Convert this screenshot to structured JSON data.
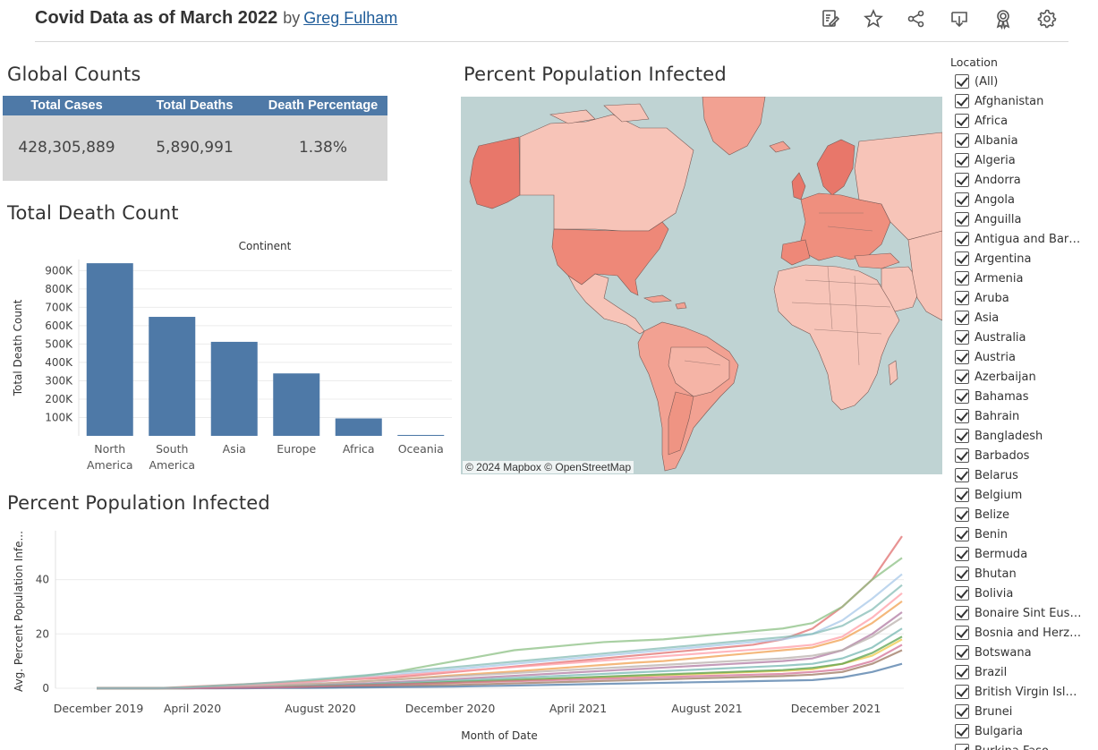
{
  "header": {
    "title": "Covid Data as of March 2022",
    "by": "by",
    "author": "Greg Fulham",
    "icons": [
      "edit-icon",
      "star-icon",
      "share-icon",
      "download-icon",
      "badge-icon",
      "gear-icon"
    ]
  },
  "global_counts": {
    "title": "Global Counts",
    "headers": [
      "Total Cases",
      "Total Deaths",
      "Death Percentage"
    ],
    "values": [
      "428,305,889",
      "5,890,991",
      "1.38%"
    ],
    "header_color": "#4e79a7",
    "body_color": "#d6d6d6"
  },
  "death_count": {
    "title": "Total Death Count"
  },
  "map": {
    "title": "Percent Population Infected",
    "attribution": "© 2024 Mapbox  © OpenStreetMap"
  },
  "ppi_line": {
    "title": "Percent Population Infected"
  },
  "filter": {
    "title": "Location",
    "items": [
      "(All)",
      "Afghanistan",
      "Africa",
      "Albania",
      "Algeria",
      "Andorra",
      "Angola",
      "Anguilla",
      "Antigua and Barb...",
      "Argentina",
      "Armenia",
      "Aruba",
      "Asia",
      "Australia",
      "Austria",
      "Azerbaijan",
      "Bahamas",
      "Bahrain",
      "Bangladesh",
      "Barbados",
      "Belarus",
      "Belgium",
      "Belize",
      "Benin",
      "Bermuda",
      "Bhutan",
      "Bolivia",
      "Bonaire Sint Eust...",
      "Bosnia and Herze...",
      "Botswana",
      "Brazil",
      "British Virgin Isla...",
      "Brunei",
      "Bulgaria",
      "Burkina Faso"
    ]
  },
  "chart_data": [
    {
      "type": "bar",
      "title": "Continent",
      "xlabel": "",
      "ylabel": "Total Death Count",
      "categories": [
        "North\nAmerica",
        "South\nAmerica",
        "Asia",
        "Europe",
        "Africa",
        "Oceania"
      ],
      "values": [
        940000,
        648000,
        512000,
        340000,
        95000,
        5000
      ],
      "ylim": [
        0,
        960000
      ],
      "yticks": [
        100000,
        200000,
        300000,
        400000,
        500000,
        600000,
        700000,
        800000,
        900000
      ],
      "ytick_labels": [
        "100K",
        "200K",
        "300K",
        "400K",
        "500K",
        "600K",
        "700K",
        "800K",
        "900K"
      ],
      "color": "#4e79a7",
      "grid": true
    },
    {
      "type": "line",
      "xlabel": "Month of Date",
      "ylabel": "Avg. Percent Population Infe...",
      "x_ticks": [
        "December 2019",
        "April 2020",
        "August 2020",
        "December 2020",
        "April 2021",
        "August 2021",
        "December 2021"
      ],
      "x_range": [
        "2019-12",
        "2022-03"
      ],
      "ylim": [
        0,
        58
      ],
      "yticks": [
        0,
        20,
        40
      ],
      "series_note": "one line per location (~200)",
      "series": [
        {
          "color": "#e06f6f",
          "values": [
            0,
            0,
            0,
            0.5,
            1,
            1.5,
            2,
            2.5,
            3,
            3.5,
            4,
            5,
            6,
            7,
            8,
            9,
            10,
            11,
            12,
            13,
            14,
            15,
            16,
            18,
            22,
            30,
            40,
            56
          ]
        },
        {
          "color": "#8cc084",
          "values": [
            0,
            0,
            0,
            0.3,
            0.8,
            1.2,
            1.8,
            2.5,
            3.5,
            4.5,
            6,
            8,
            10,
            12,
            14,
            15,
            16,
            17,
            17.5,
            18,
            19,
            20,
            21,
            22,
            24,
            30,
            40,
            48
          ]
        },
        {
          "color": "#a8c8e8",
          "values": [
            0,
            0,
            0,
            0.2,
            0.5,
            1,
            1.5,
            2,
            3,
            4,
            5,
            6,
            7,
            8,
            9,
            10,
            11,
            12,
            13,
            14,
            15,
            16,
            17,
            18,
            20,
            25,
            33,
            42
          ]
        },
        {
          "color": "#f0a050",
          "values": [
            0,
            0,
            0,
            0.1,
            0.3,
            0.6,
            1,
            1.4,
            2,
            2.6,
            3.2,
            4,
            4.8,
            5.5,
            6.2,
            7,
            7.8,
            8.6,
            9.4,
            10,
            11,
            12,
            13,
            14,
            15,
            18,
            24,
            32
          ]
        },
        {
          "color": "#b07aa1",
          "values": [
            0,
            0,
            0,
            0.1,
            0.2,
            0.4,
            0.7,
            1,
            1.4,
            1.8,
            2.3,
            2.8,
            3.4,
            4,
            4.6,
            5.2,
            5.8,
            6.4,
            7,
            7.6,
            8.2,
            8.8,
            9.4,
            10,
            11,
            14,
            20,
            28
          ]
        },
        {
          "color": "#76b7b2",
          "values": [
            0,
            0,
            0,
            0,
            0.1,
            0.3,
            0.5,
            0.8,
            1.1,
            1.5,
            1.9,
            2.3,
            2.8,
            3.3,
            3.8,
            4.3,
            4.8,
            5.3,
            5.8,
            6.3,
            6.8,
            7.3,
            7.8,
            8.3,
            9,
            11,
            15,
            22
          ]
        },
        {
          "color": "#edc948",
          "values": [
            0,
            0,
            0,
            0,
            0.1,
            0.2,
            0.3,
            0.5,
            0.7,
            1,
            1.3,
            1.6,
            2,
            2.4,
            2.8,
            3.2,
            3.6,
            4,
            4.4,
            4.8,
            5.2,
            5.6,
            6,
            6.4,
            7,
            9,
            12,
            18
          ]
        },
        {
          "color": "#9c755f",
          "values": [
            0,
            0,
            0,
            0,
            0,
            0.1,
            0.2,
            0.3,
            0.4,
            0.6,
            0.8,
            1,
            1.2,
            1.5,
            1.8,
            2.1,
            2.4,
            2.7,
            3,
            3.3,
            3.6,
            3.9,
            4.2,
            4.5,
            5,
            6,
            9,
            14
          ]
        },
        {
          "color": "#ff9da7",
          "values": [
            0,
            0,
            0,
            0.2,
            0.6,
            1,
            1.6,
            2.2,
            3,
            3.8,
            4.6,
            5.4,
            6.2,
            7,
            7.8,
            8.6,
            9.4,
            10.2,
            11,
            11.8,
            12.6,
            13.4,
            14.2,
            15,
            16,
            19,
            26,
            35
          ]
        },
        {
          "color": "#59a14f",
          "values": [
            0,
            0,
            0,
            0,
            0.1,
            0.2,
            0.4,
            0.6,
            0.9,
            1.2,
            1.5,
            1.9,
            2.3,
            2.7,
            3.1,
            3.5,
            3.9,
            4.3,
            4.7,
            5.1,
            5.5,
            5.9,
            6.3,
            6.7,
            7.5,
            9,
            13,
            19
          ]
        },
        {
          "color": "#4e79a7",
          "values": [
            0,
            0,
            0,
            0,
            0,
            0,
            0.1,
            0.1,
            0.2,
            0.3,
            0.4,
            0.5,
            0.6,
            0.8,
            1,
            1.2,
            1.4,
            1.6,
            1.8,
            2,
            2.2,
            2.4,
            2.6,
            2.8,
            3,
            4,
            6,
            9
          ]
        },
        {
          "color": "#bab0ac",
          "values": [
            0,
            0,
            0,
            0.1,
            0.3,
            0.6,
            1,
            1.5,
            2,
            2.6,
            3.2,
            3.8,
            4.4,
            5,
            5.6,
            6.2,
            6.8,
            7.4,
            8,
            8.6,
            9.2,
            9.8,
            10.4,
            11,
            12,
            14,
            19,
            26
          ]
        },
        {
          "color": "#d37295",
          "values": [
            0,
            0,
            0,
            0,
            0.1,
            0.2,
            0.3,
            0.5,
            0.8,
            1.1,
            1.4,
            1.7,
            2,
            2.3,
            2.6,
            2.9,
            3.2,
            3.5,
            3.8,
            4.1,
            4.4,
            4.7,
            5,
            5.3,
            6,
            7,
            10,
            16
          ]
        },
        {
          "color": "#86bcb6",
          "values": [
            0,
            0,
            0,
            0.3,
            0.9,
            1.5,
            2.2,
            3,
            3.9,
            4.8,
            5.8,
            6.8,
            7.8,
            8.8,
            9.8,
            10.8,
            11.8,
            12.8,
            13.8,
            14.8,
            15.8,
            16.8,
            17.8,
            18.8,
            20,
            23,
            29,
            38
          ]
        }
      ]
    }
  ]
}
